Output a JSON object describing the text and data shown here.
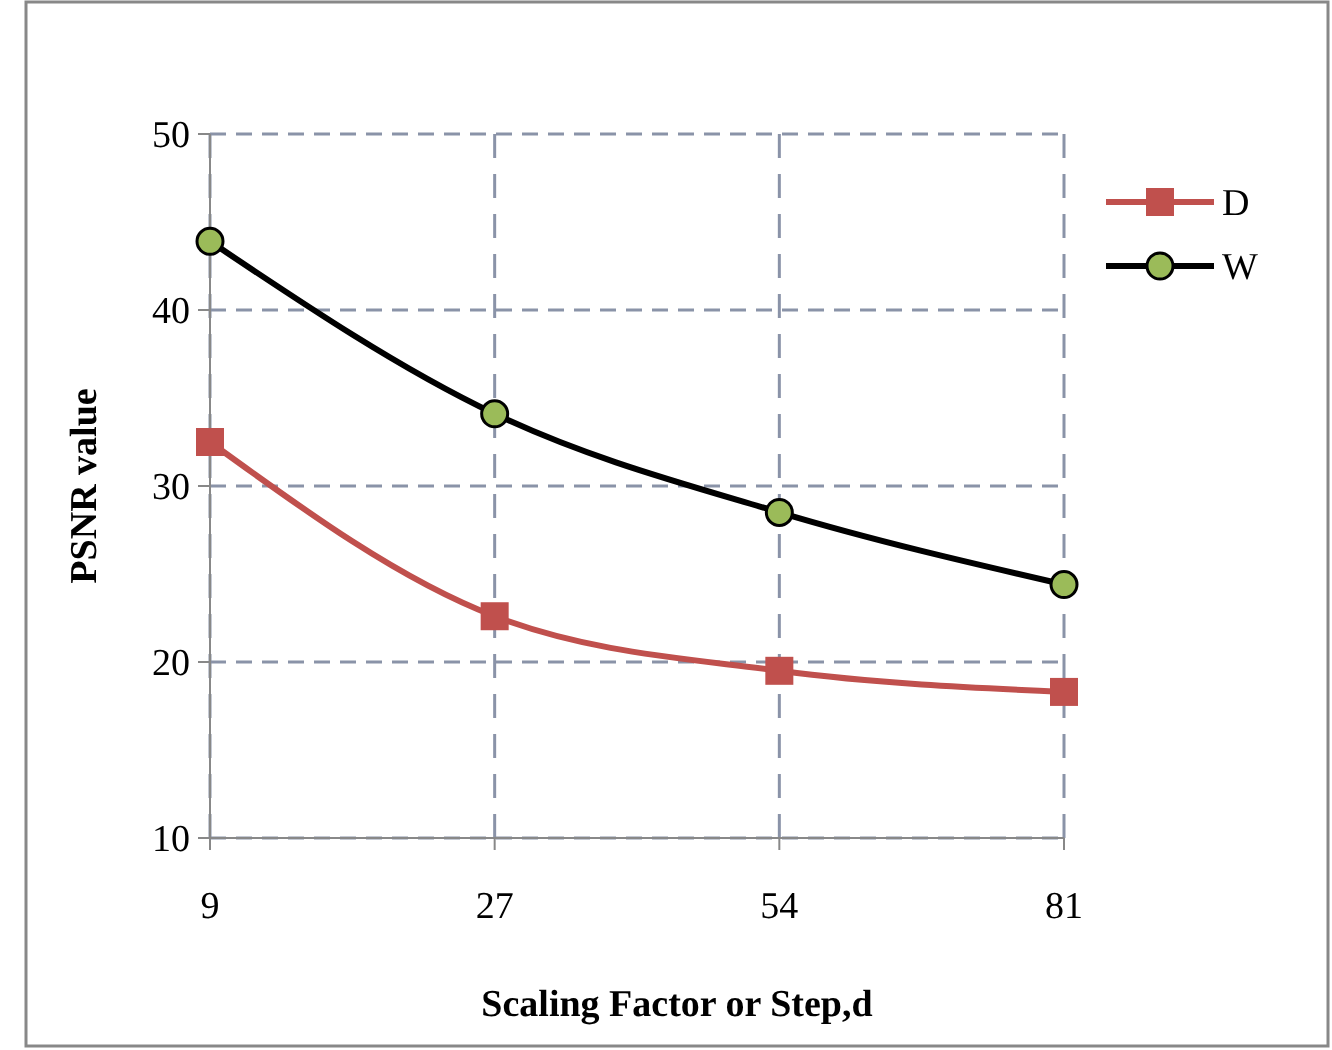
{
  "chart_data": {
    "type": "line",
    "xlabel": "Scaling Factor or Step,d",
    "ylabel": "PSNR value",
    "categories": [
      "9",
      "27",
      "54",
      "81"
    ],
    "series": [
      {
        "name": "D",
        "color": "#c0504d",
        "marker": "square",
        "values": [
          32.5,
          22.6,
          19.5,
          18.3
        ]
      },
      {
        "name": "W",
        "color": "#000000",
        "marker": "circle",
        "values": [
          43.9,
          34.1,
          28.5,
          24.4
        ]
      }
    ],
    "ylim": [
      10,
      50
    ],
    "yticks": [
      10,
      20,
      30,
      40,
      50
    ],
    "grid": true,
    "legend": "right",
    "line_style": "solid"
  }
}
